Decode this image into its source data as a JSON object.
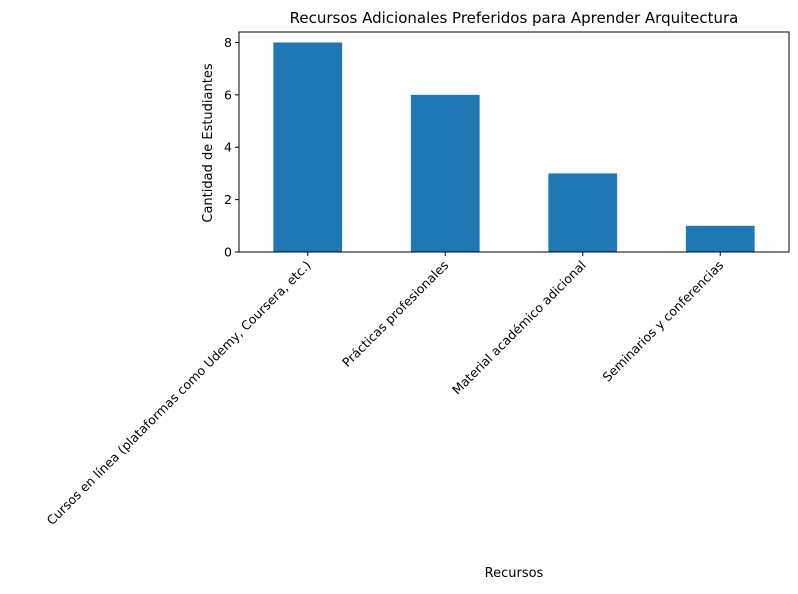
{
  "chart_data": {
    "type": "bar",
    "title": "Recursos Adicionales Preferidos para Aprender Arquitectura",
    "xlabel": "Recursos",
    "ylabel": "Cantidad de Estudiantes",
    "categories": [
      "Cursos en línea (plataformas como Udemy, Coursera, etc.)",
      "Prácticas profesionales",
      "Material académico adicional",
      "Seminarios y conferencias"
    ],
    "values": [
      8,
      6,
      3,
      1
    ],
    "ylim": [
      0,
      8.4
    ],
    "yticks": [
      0,
      2,
      4,
      6,
      8
    ],
    "grid": false,
    "legend": "none",
    "bar_color": "#1f77b4"
  }
}
